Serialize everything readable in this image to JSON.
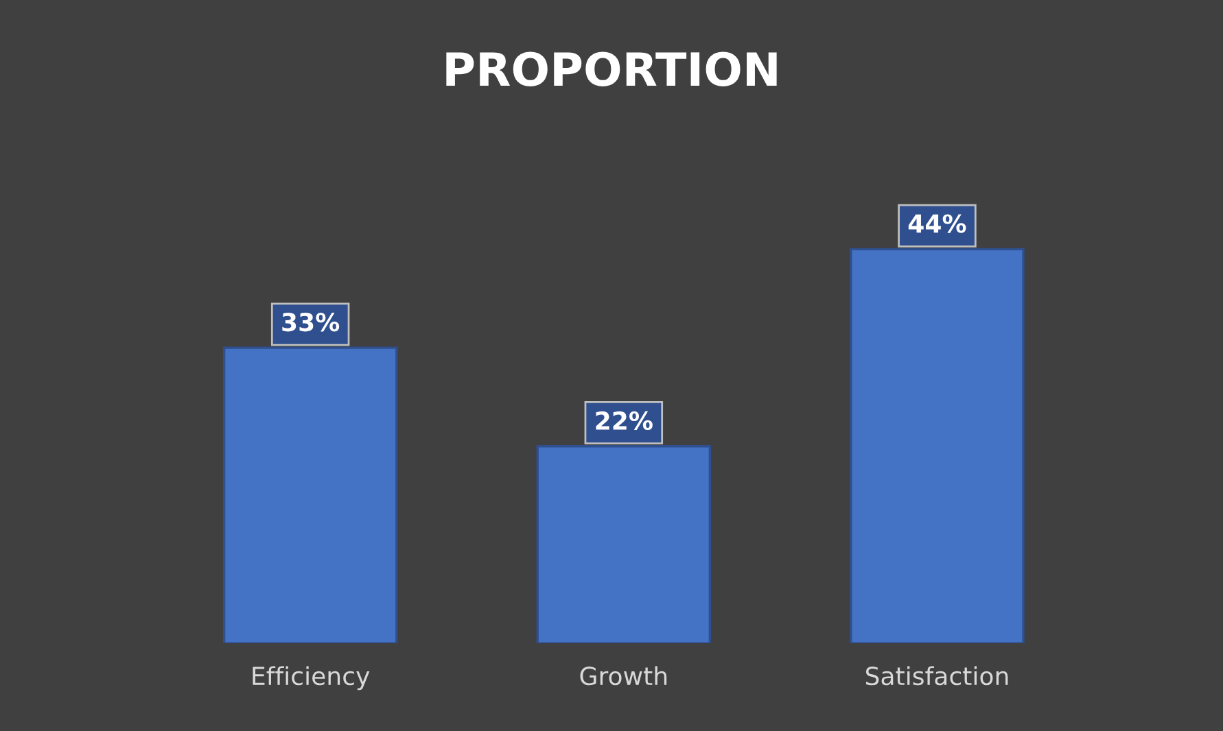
{
  "chart_data": {
    "type": "bar",
    "title": "PROPORTION",
    "categories": [
      "Efficiency",
      "Growth",
      "Satisfaction"
    ],
    "values": [
      33,
      22,
      44
    ],
    "value_labels": [
      "33%",
      "22%",
      "44%"
    ],
    "color": "#4472c4",
    "grid": false,
    "legend": false
  }
}
